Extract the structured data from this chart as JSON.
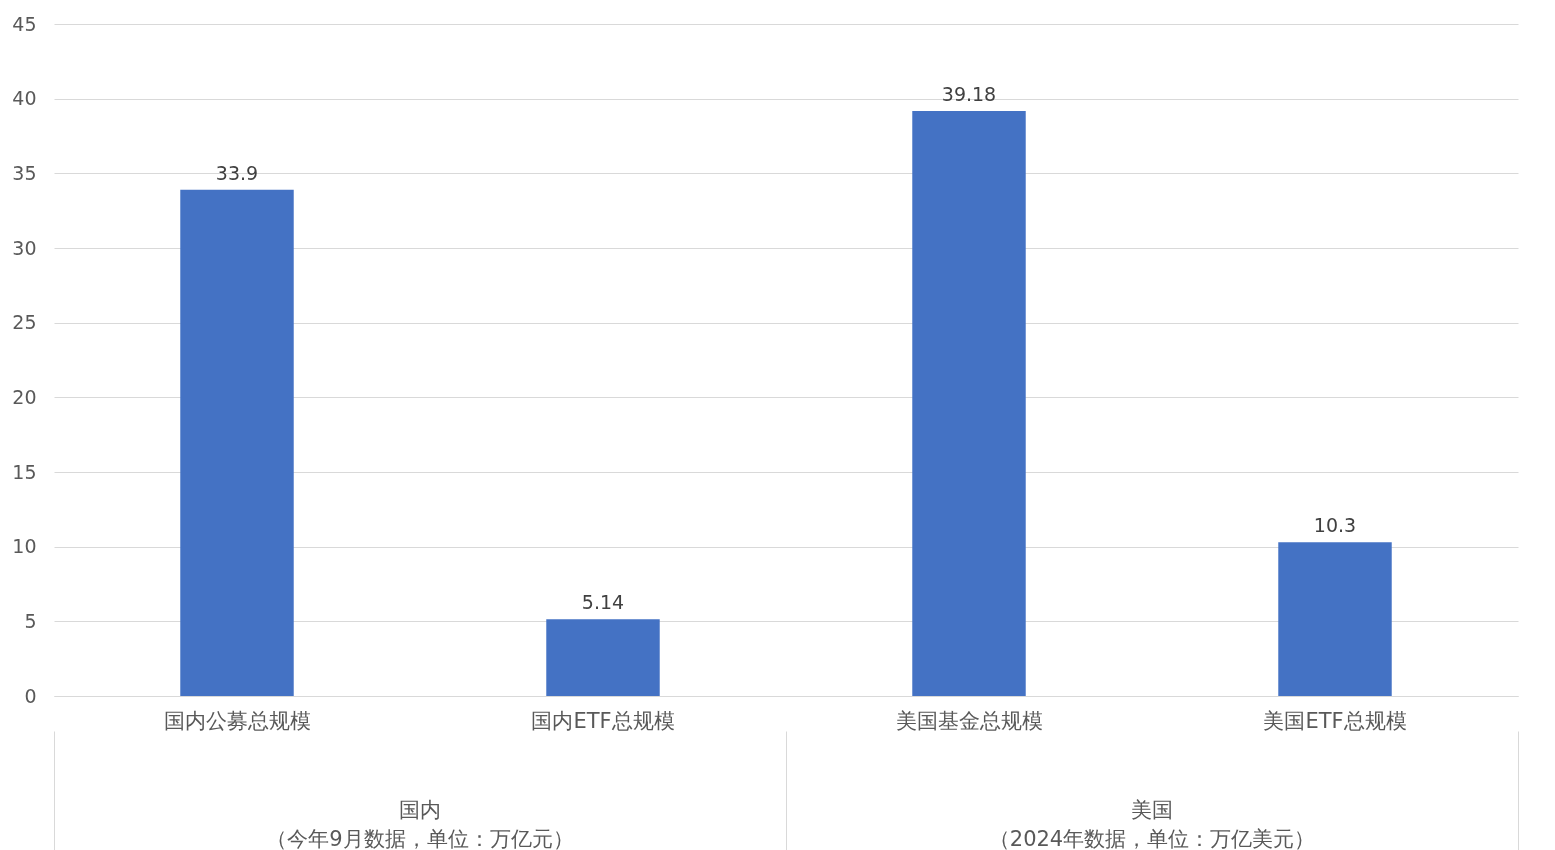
{
  "chart_data": {
    "type": "bar",
    "categories": [
      "国内公募总规模",
      "国内ETF总规模",
      "美国基金总规模",
      "美国ETF总规模"
    ],
    "values": [
      33.9,
      5.14,
      39.18,
      10.3
    ],
    "color": "#4472c4",
    "ylim": [
      0,
      45
    ],
    "yticks": [
      0,
      5,
      10,
      15,
      20,
      25,
      30,
      35,
      40,
      45
    ],
    "grid": "y",
    "data_labels": true,
    "annotations": [
      "国内",
      "（今年9月数据，单位：万亿元）",
      "美国",
      "（2024年数据，单位：万亿美元）"
    ]
  }
}
